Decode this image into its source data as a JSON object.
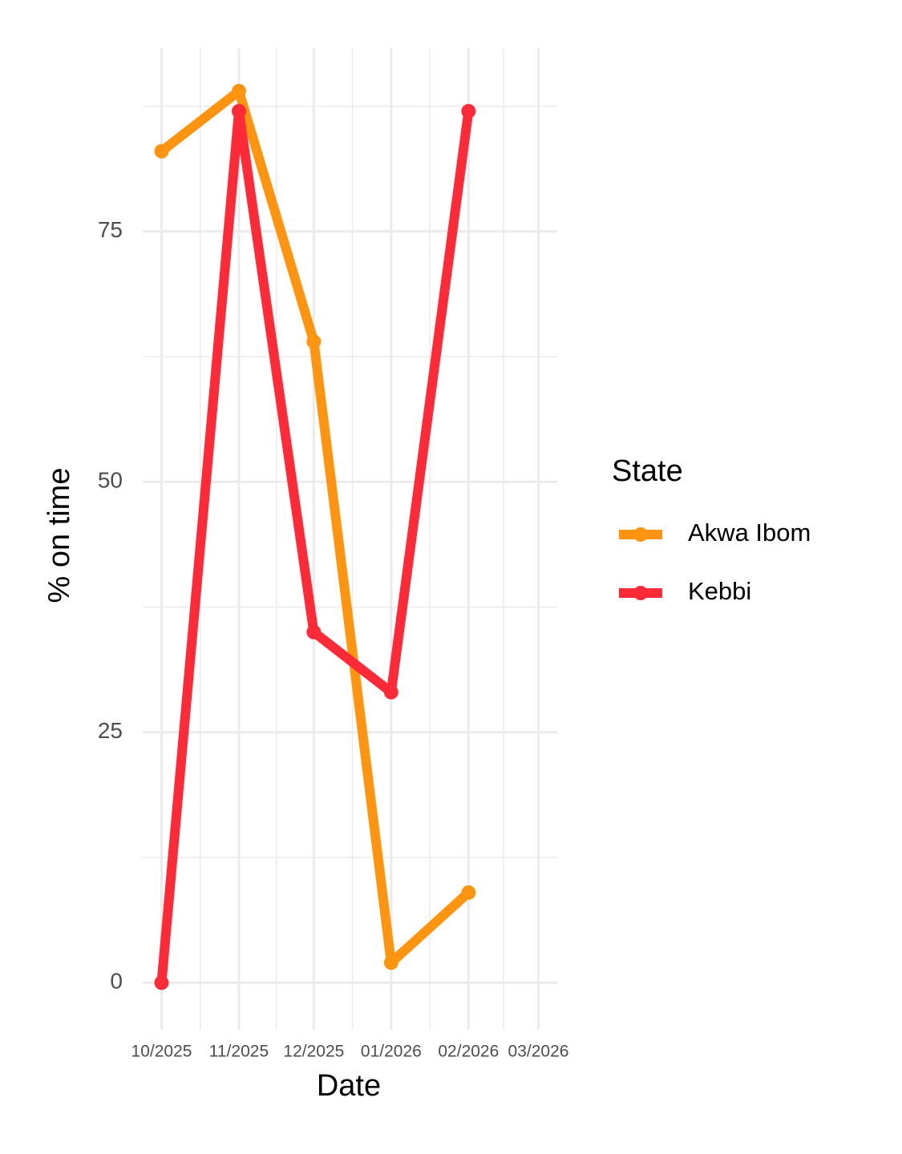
{
  "chart_data": {
    "type": "line",
    "x_label": "Date",
    "y_label": "% on time",
    "x": [
      "2025-10",
      "2025-11",
      "2025-12",
      "2026-01",
      "2026-02"
    ],
    "series": [
      {
        "name": "Akwa Ibom",
        "color": "#ff9410",
        "values": [
          83,
          89,
          64,
          2,
          9
        ]
      },
      {
        "name": "Kebbi",
        "color": "#ff2a38",
        "values": [
          0,
          87,
          35,
          29,
          87
        ]
      }
    ],
    "xlim": [
      "2025-10",
      "2026-03"
    ],
    "xticks": [
      {
        "value": "2025-10",
        "label": "10/2025"
      },
      {
        "value": "2025-11",
        "label": "11/2025"
      },
      {
        "value": "2025-12",
        "label": "12/2025"
      },
      {
        "value": "2026-01",
        "label": "01/2026"
      },
      {
        "value": "2026-02",
        "label": "02/2026"
      },
      {
        "value": "2026-03",
        "label": "03/2026"
      }
    ],
    "ylim": [
      -4.7,
      93.3
    ],
    "yticks": [
      0,
      25,
      50,
      75
    ],
    "grid": true,
    "legend_title": "State",
    "legend": "right"
  }
}
